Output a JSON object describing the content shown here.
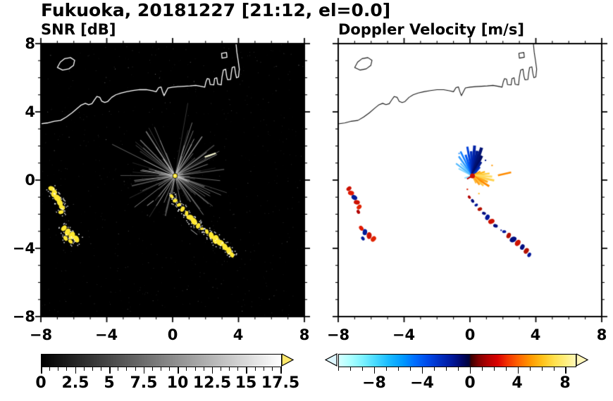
{
  "title": "Fukuoka, 20181227 [21:12, el=0.0]",
  "chart_data": [
    {
      "id": "snr",
      "type": "heatmap",
      "title": "SNR [dB]",
      "xlim": [
        -8,
        8
      ],
      "ylim": [
        -8,
        8
      ],
      "x_tick_labels": [
        "−8",
        "−4",
        "0",
        "4",
        "8"
      ],
      "y_tick_labels": [
        "8",
        "4",
        "0",
        "−4",
        "−8"
      ],
      "background": "#000000",
      "coast_color": "#ffffff",
      "colorbar": {
        "range": [
          0,
          17.5
        ],
        "tick_values": [
          0,
          2.5,
          5,
          7.5,
          10,
          12.5,
          15,
          17.5
        ],
        "tick_labels": [
          "0",
          "2.5",
          "5",
          "7.5",
          "10",
          "12.5",
          "15",
          "17.5"
        ],
        "minor_step": 0.625,
        "gradient_stops": [
          "#000000 0%",
          "#ffffff 100%"
        ],
        "over_arrow_color": "#ffe96b"
      },
      "radar_center": [
        0.15,
        0.25
      ],
      "streaks": {
        "seed": 7,
        "count": 95,
        "len_min": 0.5,
        "len_max": 3.4,
        "rgb": "205,205,205"
      },
      "noise": {
        "seed": 11,
        "count": 750
      },
      "echo_color": "#ffe832",
      "echo_blobs": [
        [
          -7.35,
          -0.5,
          0.18
        ],
        [
          -7.2,
          -0.78,
          0.2
        ],
        [
          -7.0,
          -1.05,
          0.22
        ],
        [
          -6.85,
          -1.32,
          0.2
        ],
        [
          -6.72,
          -1.6,
          0.17
        ],
        [
          -6.78,
          -1.88,
          0.14
        ],
        [
          -6.6,
          -2.82,
          0.17
        ],
        [
          -6.38,
          -3.05,
          0.2
        ],
        [
          -6.12,
          -3.25,
          0.22
        ],
        [
          -5.85,
          -3.45,
          0.2
        ],
        [
          -6.5,
          -3.42,
          0.14
        ],
        [
          -6.2,
          -3.6,
          0.13
        ],
        [
          -0.05,
          -0.95,
          0.12
        ],
        [
          0.15,
          -1.2,
          0.13
        ],
        [
          0.38,
          -1.45,
          0.12
        ],
        [
          0.6,
          -1.7,
          0.15
        ],
        [
          0.85,
          -1.95,
          0.13
        ],
        [
          1.05,
          -2.18,
          0.19
        ],
        [
          1.3,
          -2.42,
          0.21
        ],
        [
          1.55,
          -2.68,
          0.15
        ],
        [
          1.78,
          -2.85,
          0.1
        ],
        [
          2.08,
          -3.02,
          0.13
        ],
        [
          2.35,
          -3.25,
          0.19
        ],
        [
          2.62,
          -3.48,
          0.24
        ],
        [
          2.9,
          -3.68,
          0.22
        ],
        [
          3.18,
          -3.92,
          0.19
        ],
        [
          3.42,
          -4.15,
          0.2
        ],
        [
          3.6,
          -4.38,
          0.15
        ]
      ],
      "isolated_streaks": [
        [
          1.95,
          1.35,
          2.62,
          1.58,
          "#ffffd8",
          2.2
        ],
        [
          -1.55,
          -1.5,
          -1.15,
          -1.2,
          "#9a9a9a",
          1.2
        ],
        [
          1.1,
          -2.9,
          1.5,
          -3.2,
          "#bbbbbb",
          1
        ]
      ]
    },
    {
      "id": "doppler",
      "type": "scatter",
      "title": "Doppler Velocity [m/s]",
      "xlim": [
        -8,
        8
      ],
      "ylim": [
        -8,
        8
      ],
      "x_tick_labels": [
        "−8",
        "−4",
        "0",
        "4",
        "8"
      ],
      "background": "#ffffff",
      "coast_color": "#1a1a1a",
      "colorbar": {
        "range": [
          -11,
          8.8
        ],
        "tick_values": [
          -8,
          -4,
          0,
          4,
          8
        ],
        "tick_labels": [
          "−8",
          "−4",
          "0",
          "4",
          "8"
        ],
        "minor_step": 1,
        "gradient_stops": [
          "#d4ffff 0%",
          "#aaffff 5%",
          "#7df2ff 10%",
          "#4cdcff 15%",
          "#19bbff 21%",
          "#0099ff 27%",
          "#006eff 32%",
          "#0046e6 38%",
          "#002cbf 43%",
          "#001699 48%",
          "#000766 52%",
          "#00033a 55%",
          "#3a0000 55.8%",
          "#800000 59%",
          "#b30000 63%",
          "#d90000 67%",
          "#f23000 71%",
          "#ff6600 76%",
          "#ff9900 81%",
          "#ffc21a 86%",
          "#ffe04d 91%",
          "#ffef80 96%",
          "#fff7b8 100%"
        ],
        "under_arrow_color": "#dff7ff",
        "over_arrow_color": "#fff6bb"
      },
      "center": [
        0.15,
        0.25
      ],
      "center_dot_color": "#cc1100",
      "fan_streaks": [
        [
          152,
          0.95,
          "#7fd4ff",
          2
        ],
        [
          143,
          1.25,
          "#4db8ff",
          2
        ],
        [
          134,
          1.05,
          "#66c6ff",
          2
        ],
        [
          125,
          1.45,
          "#2e9bff",
          2.5
        ],
        [
          116,
          1.65,
          "#0f7dff",
          2.5
        ],
        [
          108,
          1.35,
          "#0059f2",
          3
        ],
        [
          100,
          1.8,
          "#0040d9",
          3
        ],
        [
          93,
          1.5,
          "#0030bf",
          3.5
        ],
        [
          86,
          1.85,
          "#0022a6",
          4
        ],
        [
          79,
          1.55,
          "#001a8c",
          4
        ],
        [
          72,
          1.8,
          "#001273",
          4.5
        ],
        [
          65,
          1.35,
          "#000d66",
          4
        ],
        [
          58,
          1.0,
          "#001a8c",
          3.5
        ],
        [
          50,
          0.7,
          "#0030bf",
          3
        ],
        [
          30,
          0.55,
          "#ff9e00",
          2
        ],
        [
          18,
          0.8,
          "#ffb71a",
          2.5
        ],
        [
          8,
          1.05,
          "#ffcf40",
          2.5
        ],
        [
          -2,
          1.2,
          "#ffdd66",
          3
        ],
        [
          -12,
          1.35,
          "#ffd24d",
          3
        ],
        [
          -22,
          1.0,
          "#ffa81a",
          3
        ],
        [
          -32,
          1.2,
          "#ff8c00",
          3
        ],
        [
          -42,
          0.9,
          "#ffc440",
          2.5
        ],
        [
          -52,
          0.7,
          "#ff9e1a",
          2.5
        ],
        [
          -64,
          0.5,
          "#ffb733",
          2
        ],
        [
          196,
          0.5,
          "#8ce0ff",
          2
        ],
        [
          210,
          0.38,
          "#c00000",
          2
        ]
      ],
      "blobs": [
        [
          -7.35,
          -0.5,
          0.15,
          "#cc1100"
        ],
        [
          -7.22,
          -0.76,
          0.17,
          "#e01800"
        ],
        [
          -7.02,
          -1.02,
          0.17,
          "#001a99"
        ],
        [
          -6.87,
          -1.3,
          0.17,
          "#cc1100"
        ],
        [
          -6.73,
          -1.58,
          0.15,
          "#e02200"
        ],
        [
          -6.78,
          -1.86,
          0.12,
          "#b30000"
        ],
        [
          -6.6,
          -2.82,
          0.15,
          "#e01800"
        ],
        [
          -6.38,
          -3.05,
          0.17,
          "#001a99"
        ],
        [
          -6.12,
          -3.25,
          0.19,
          "#cc1100"
        ],
        [
          -5.86,
          -3.45,
          0.17,
          "#e02200"
        ],
        [
          -6.5,
          -3.42,
          0.12,
          "#001a99"
        ],
        [
          -0.04,
          -1.0,
          0.1,
          "#b30000"
        ],
        [
          0.16,
          -1.22,
          0.11,
          "#000d80"
        ],
        [
          0.38,
          -1.46,
          0.1,
          "#001699"
        ],
        [
          0.6,
          -1.7,
          0.13,
          "#b31000"
        ],
        [
          0.85,
          -1.95,
          0.11,
          "#000d80"
        ],
        [
          1.06,
          -2.18,
          0.16,
          "#001699"
        ],
        [
          1.3,
          -2.42,
          0.18,
          "#cc1100"
        ],
        [
          1.55,
          -2.68,
          0.13,
          "#000d80"
        ],
        [
          2.08,
          -3.02,
          0.11,
          "#001699"
        ],
        [
          2.35,
          -3.25,
          0.16,
          "#b31000"
        ],
        [
          2.62,
          -3.48,
          0.2,
          "#000d80"
        ],
        [
          2.9,
          -3.68,
          0.19,
          "#cc1100"
        ],
        [
          3.18,
          -3.92,
          0.16,
          "#000d80"
        ],
        [
          3.42,
          -4.15,
          0.17,
          "#b31000"
        ],
        [
          3.6,
          -4.38,
          0.13,
          "#001699"
        ]
      ],
      "specks": [
        [
          -0.7,
          1.6,
          "#3399ff"
        ],
        [
          0.9,
          1.2,
          "#001a8c"
        ],
        [
          1.3,
          0.9,
          "#ff9900"
        ],
        [
          -0.2,
          -0.5,
          "#dd2200"
        ],
        [
          0.5,
          -0.75,
          "#ffb71a"
        ],
        [
          1.85,
          -2.9,
          "#001699"
        ]
      ],
      "isolated_streaks": [
        [
          1.7,
          0.28,
          2.5,
          0.45,
          "#ff8c00",
          2.5
        ]
      ]
    }
  ],
  "coastline": {
    "paths": [
      {
        "close": false,
        "pts": [
          [
            -8,
            3.3
          ],
          [
            -7.6,
            3.35
          ],
          [
            -7.2,
            3.45
          ],
          [
            -6.8,
            3.5
          ],
          [
            -6.45,
            3.7
          ],
          [
            -6.1,
            3.95
          ],
          [
            -5.8,
            4.2
          ],
          [
            -5.55,
            4.4
          ],
          [
            -5.3,
            4.5
          ],
          [
            -5.1,
            4.42
          ],
          [
            -4.9,
            4.48
          ],
          [
            -4.75,
            4.7
          ],
          [
            -4.6,
            4.9
          ],
          [
            -4.42,
            4.85
          ],
          [
            -4.3,
            4.62
          ],
          [
            -4.12,
            4.55
          ],
          [
            -3.95,
            4.6
          ],
          [
            -3.7,
            4.85
          ],
          [
            -3.45,
            5.0
          ],
          [
            -3.15,
            5.1
          ],
          [
            -2.8,
            5.18
          ],
          [
            -2.4,
            5.25
          ],
          [
            -2.0,
            5.3
          ],
          [
            -1.6,
            5.3
          ],
          [
            -1.25,
            5.24
          ],
          [
            -1.0,
            5.18
          ],
          [
            -0.85,
            5.42
          ],
          [
            -0.7,
            5.46
          ],
          [
            -0.62,
            5.2
          ],
          [
            -0.52,
            4.95
          ],
          [
            -0.4,
            5.18
          ],
          [
            -0.28,
            5.4
          ],
          [
            0.0,
            5.45
          ],
          [
            0.35,
            5.48
          ],
          [
            0.7,
            5.5
          ],
          [
            1.05,
            5.52
          ],
          [
            1.4,
            5.55
          ],
          [
            1.7,
            5.5
          ],
          [
            1.95,
            5.45
          ],
          [
            2.02,
            5.75
          ],
          [
            2.1,
            5.95
          ],
          [
            2.22,
            5.92
          ],
          [
            2.28,
            5.6
          ],
          [
            2.5,
            5.58
          ],
          [
            2.55,
            5.95
          ],
          [
            2.68,
            6.0
          ],
          [
            2.74,
            5.62
          ],
          [
            2.95,
            5.58
          ],
          [
            3.0,
            6.05
          ],
          [
            3.08,
            6.45
          ],
          [
            3.22,
            6.5
          ],
          [
            3.28,
            6.08
          ],
          [
            3.34,
            5.88
          ],
          [
            3.52,
            5.9
          ],
          [
            3.56,
            6.25
          ],
          [
            3.62,
            6.6
          ],
          [
            3.76,
            6.64
          ],
          [
            3.82,
            6.25
          ],
          [
            3.88,
            6.0
          ],
          [
            4.0,
            6.05
          ],
          [
            4.05,
            6.5
          ],
          [
            3.98,
            7.0
          ],
          [
            3.9,
            7.5
          ],
          [
            3.85,
            8.0
          ]
        ]
      },
      {
        "close": true,
        "pts": [
          [
            -7.0,
            6.6
          ],
          [
            -6.82,
            6.92
          ],
          [
            -6.55,
            7.12
          ],
          [
            -6.2,
            7.18
          ],
          [
            -5.95,
            7.02
          ],
          [
            -6.02,
            6.72
          ],
          [
            -6.3,
            6.52
          ],
          [
            -6.68,
            6.45
          ]
        ]
      },
      {
        "close": true,
        "pts": [
          [
            3.0,
            7.15
          ],
          [
            3.3,
            7.2
          ],
          [
            3.27,
            7.48
          ],
          [
            2.97,
            7.43
          ]
        ]
      }
    ]
  }
}
